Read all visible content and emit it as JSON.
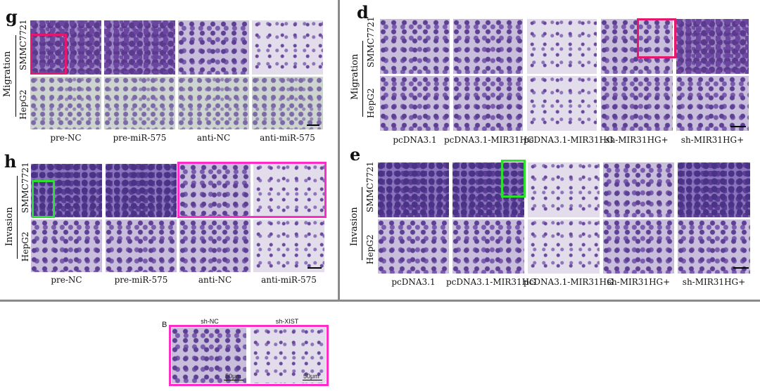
{
  "panel_g": {
    "letter": "g",
    "group_label": "Migration",
    "rows": [
      "SMMC7721",
      "HepG2"
    ],
    "columns": [
      "pre-NC",
      "pre-miR-575",
      "anti-NC",
      "anti-miR-575"
    ]
  },
  "panel_h": {
    "letter": "h",
    "group_label": "Invasion",
    "rows": [
      "SMMC7721",
      "HepG2"
    ],
    "columns": [
      "pre-NC",
      "pre-miR-575",
      "anti-NC",
      "anti-miR-575"
    ]
  },
  "panel_d": {
    "letter": "d",
    "group_label": "Migration",
    "rows": [
      "SMMC7721",
      "HepG2"
    ],
    "columns": [
      "pcDNA3.1",
      "pcDNA3.1-MIR31HG",
      "pcDNA3.1-MIR31HG",
      "sh-MIR31HG+",
      "sh-MIR31HG+"
    ]
  },
  "panel_e": {
    "letter": "e",
    "group_label": "Invasion",
    "rows": [
      "SMMC7721",
      "HepG2"
    ],
    "columns": [
      "pcDNA3.1",
      "pcDNA3.1-MIR31HG",
      "pcDNA3.1-MIR31HG",
      "sh-MIR31HG+",
      "sh-MIR31HG+"
    ]
  },
  "panel_b": {
    "letter": "B",
    "columns": [
      "sh-NC",
      "sh-XIST"
    ],
    "scale_labels": [
      "50μm",
      "50μm"
    ]
  },
  "colors": {
    "highlight_red": "#e6176e",
    "highlight_green": "#2ee02e",
    "highlight_magenta": "#ff2cc8",
    "divider": "#8a8a8a"
  }
}
